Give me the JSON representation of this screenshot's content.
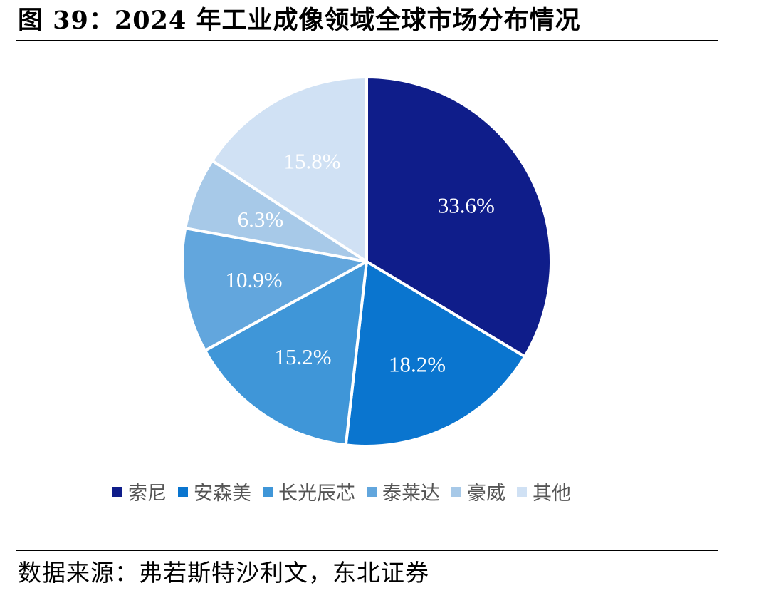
{
  "figure": {
    "title": "图 39：2024 年工业成像领域全球市场分布情况",
    "source": "数据来源：弗若斯特沙利文，东北证券"
  },
  "chart_data": {
    "type": "pie",
    "unit": "%",
    "start": "12 o'clock, clockwise",
    "categories": [
      "索尼",
      "安森美",
      "长光辰芯",
      "泰莱达",
      "豪威",
      "其他"
    ],
    "values": [
      33.6,
      18.2,
      15.2,
      10.9,
      6.3,
      15.8
    ],
    "value_labels": [
      "33.6%",
      "18.2%",
      "15.2%",
      "10.9%",
      "6.3%",
      "15.8%"
    ],
    "colors": [
      "#0f1d8a",
      "#0a75cf",
      "#3f96d8",
      "#62a6dd",
      "#a7c9e8",
      "#d0e1f4"
    ],
    "label_color": "#ffffff",
    "slice_border_color": "#ffffff",
    "legend_position": "bottom"
  }
}
